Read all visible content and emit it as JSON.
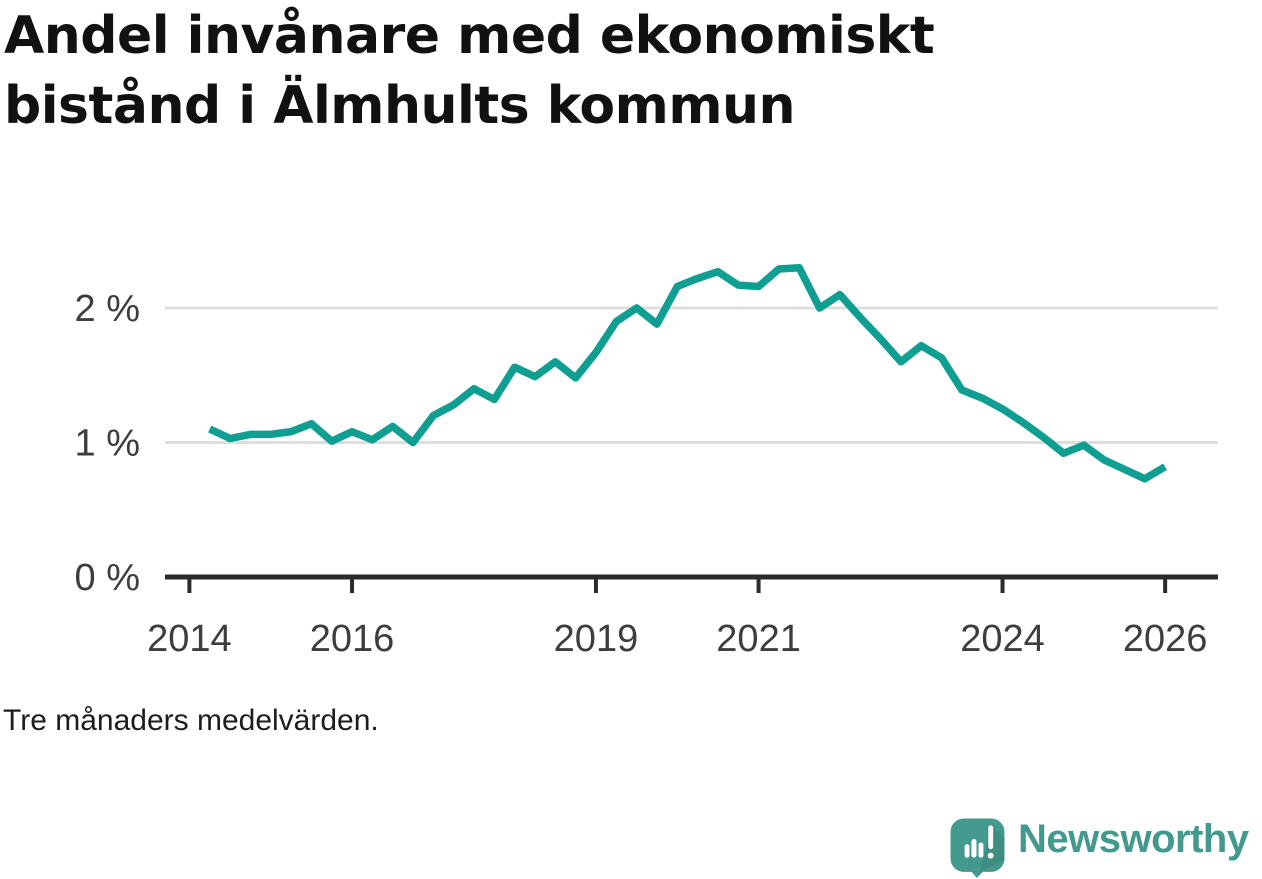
{
  "title_lines": [
    "Andel invånare med ekonomiskt",
    "bistånd i Älmhults kommun"
  ],
  "caption": "Tre månaders medelvärden.",
  "logo": {
    "wordmark": "Newsworthy",
    "icon": "newsworthy-speech-bubble-bar-chart-icon",
    "teal": "#43998d"
  },
  "theme": {
    "line_color": "#0f9e92",
    "grid_color": "#dedede",
    "axis_color": "#2b2b2b",
    "tick_label_color": "#3d3d3d",
    "title_color": "#111111",
    "caption_color": "#1d1d1d",
    "background": "#ffffff"
  },
  "chart_data": {
    "type": "line",
    "title": "Andel invånare med ekonomiskt bistånd i Älmhults kommun",
    "subtitle": "Tre månaders medelvärden.",
    "xlabel": "",
    "ylabel": "",
    "unit": "%",
    "grid": "horizontal",
    "legend": "none",
    "x_domain": [
      2013.7,
      2026.65
    ],
    "y_domain": [
      0,
      2.5
    ],
    "x_ticks": [
      2014,
      2016,
      2019,
      2021,
      2024,
      2026
    ],
    "x_tick_labels": [
      "2014",
      "2016",
      "2019",
      "2021",
      "2024",
      "2026"
    ],
    "y_ticks": [
      0,
      1,
      2
    ],
    "y_tick_labels": [
      "0 %",
      "1 %",
      "2 %"
    ],
    "series": [
      {
        "name": "Andel invånare med ekonomiskt bistånd",
        "x": [
          2014.25,
          2014.5,
          2014.75,
          2015,
          2015.25,
          2015.5,
          2015.75,
          2016,
          2016.25,
          2016.5,
          2016.75,
          2017,
          2017.25,
          2017.5,
          2017.75,
          2018,
          2018.25,
          2018.5,
          2018.75,
          2019,
          2019.25,
          2019.5,
          2019.75,
          2020,
          2020.25,
          2020.5,
          2020.75,
          2021,
          2021.25,
          2021.5,
          2021.75,
          2022,
          2022.25,
          2022.5,
          2022.75,
          2023,
          2023.25,
          2023.5,
          2023.75,
          2024,
          2024.25,
          2024.5,
          2024.75,
          2025,
          2025.25,
          2025.5,
          2025.75,
          2026
        ],
        "values": [
          1.1,
          1.03,
          1.06,
          1.06,
          1.08,
          1.14,
          1.01,
          1.08,
          1.02,
          1.12,
          1.0,
          1.2,
          1.28,
          1.4,
          1.32,
          1.56,
          1.49,
          1.6,
          1.48,
          1.67,
          1.9,
          2.0,
          1.88,
          2.16,
          2.22,
          2.27,
          2.17,
          2.16,
          2.29,
          2.3,
          2.0,
          2.1,
          1.93,
          1.77,
          1.6,
          1.72,
          1.63,
          1.39,
          1.33,
          1.25,
          1.15,
          1.04,
          0.92,
          0.98,
          0.87,
          0.8,
          0.73,
          0.82
        ]
      }
    ]
  }
}
